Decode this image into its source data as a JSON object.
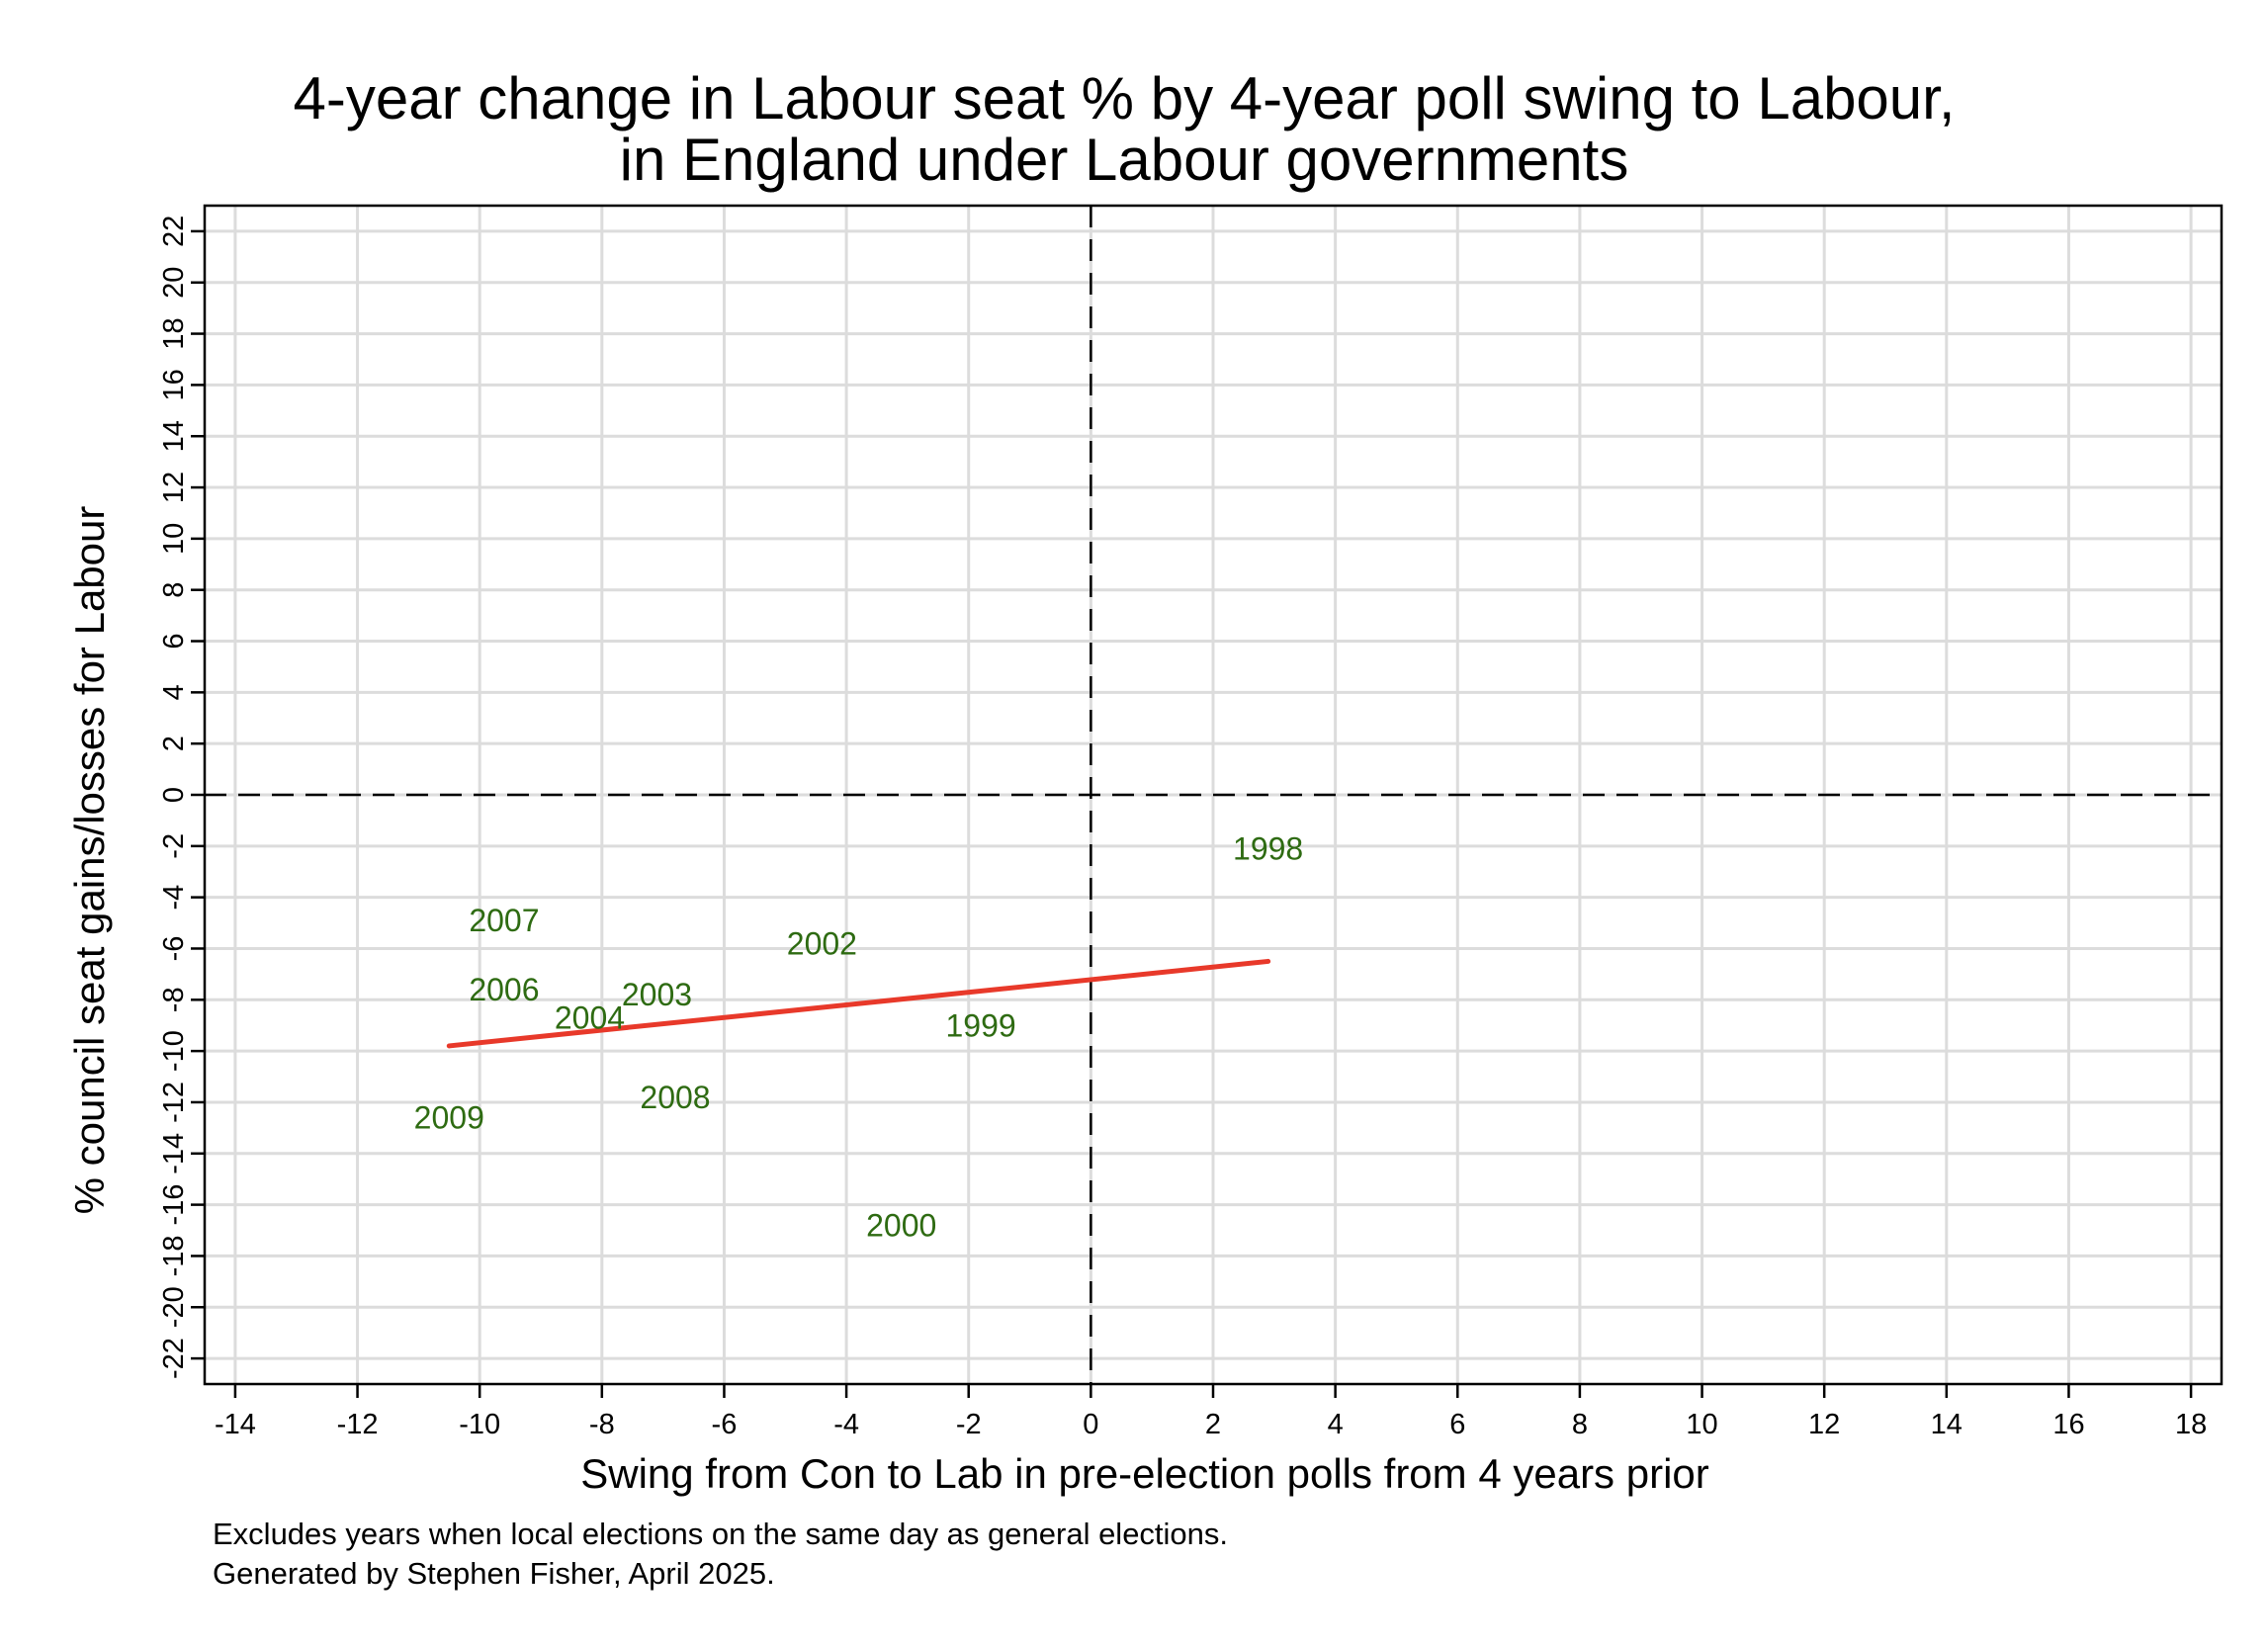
{
  "chart_data": {
    "type": "scatter",
    "title": [
      "4-year change in Labour seat % by 4-year poll swing to Labour,",
      "in England under Labour governments"
    ],
    "xlabel": "Swing from Con to Lab in pre-election polls from 4 years prior",
    "ylabel": "% council seat gains/losses for Labour",
    "xlim": [
      -14.5,
      18.5
    ],
    "ylim": [
      -23,
      23
    ],
    "xticks": [
      "-14",
      "-12",
      "-10",
      "-8",
      "-6",
      "-4",
      "-2",
      "0",
      "2",
      "4",
      "6",
      "8",
      "10",
      "12",
      "14",
      "16",
      "18"
    ],
    "yticks": [
      "-22",
      "-20",
      "-18",
      "-16",
      "-14",
      "-12",
      "-10",
      "-8",
      "-6",
      "-4",
      "-2",
      "0",
      "2",
      "4",
      "6",
      "8",
      "10",
      "12",
      "14",
      "16",
      "18",
      "20",
      "22"
    ],
    "grid": true,
    "reference_lines": {
      "x": 0,
      "y": 0,
      "style": "dashed"
    },
    "points": [
      {
        "label": "1998",
        "x": 2.9,
        "y": -2.2
      },
      {
        "label": "1999",
        "x": -1.8,
        "y": -9.1
      },
      {
        "label": "2000",
        "x": -3.1,
        "y": -16.9
      },
      {
        "label": "2002",
        "x": -4.4,
        "y": -5.9
      },
      {
        "label": "2003",
        "x": -7.1,
        "y": -7.9
      },
      {
        "label": "2004",
        "x": -8.2,
        "y": -8.8
      },
      {
        "label": "2006",
        "x": -9.6,
        "y": -7.7
      },
      {
        "label": "2007",
        "x": -9.6,
        "y": -5.0
      },
      {
        "label": "2008",
        "x": -6.8,
        "y": -11.9
      },
      {
        "label": "2009",
        "x": -10.5,
        "y": -12.7
      }
    ],
    "fit_line": {
      "x": [
        -10.5,
        2.9
      ],
      "y": [
        -9.8,
        -6.5
      ]
    },
    "colors": {
      "labels": "#2e6b12",
      "fit": "#e8392a",
      "grid": "#dcdcdc",
      "axis": "#000000"
    }
  },
  "notes": [
    "Excludes years when local elections on the same day as general elections.",
    "Generated by Stephen Fisher, April 2025."
  ]
}
